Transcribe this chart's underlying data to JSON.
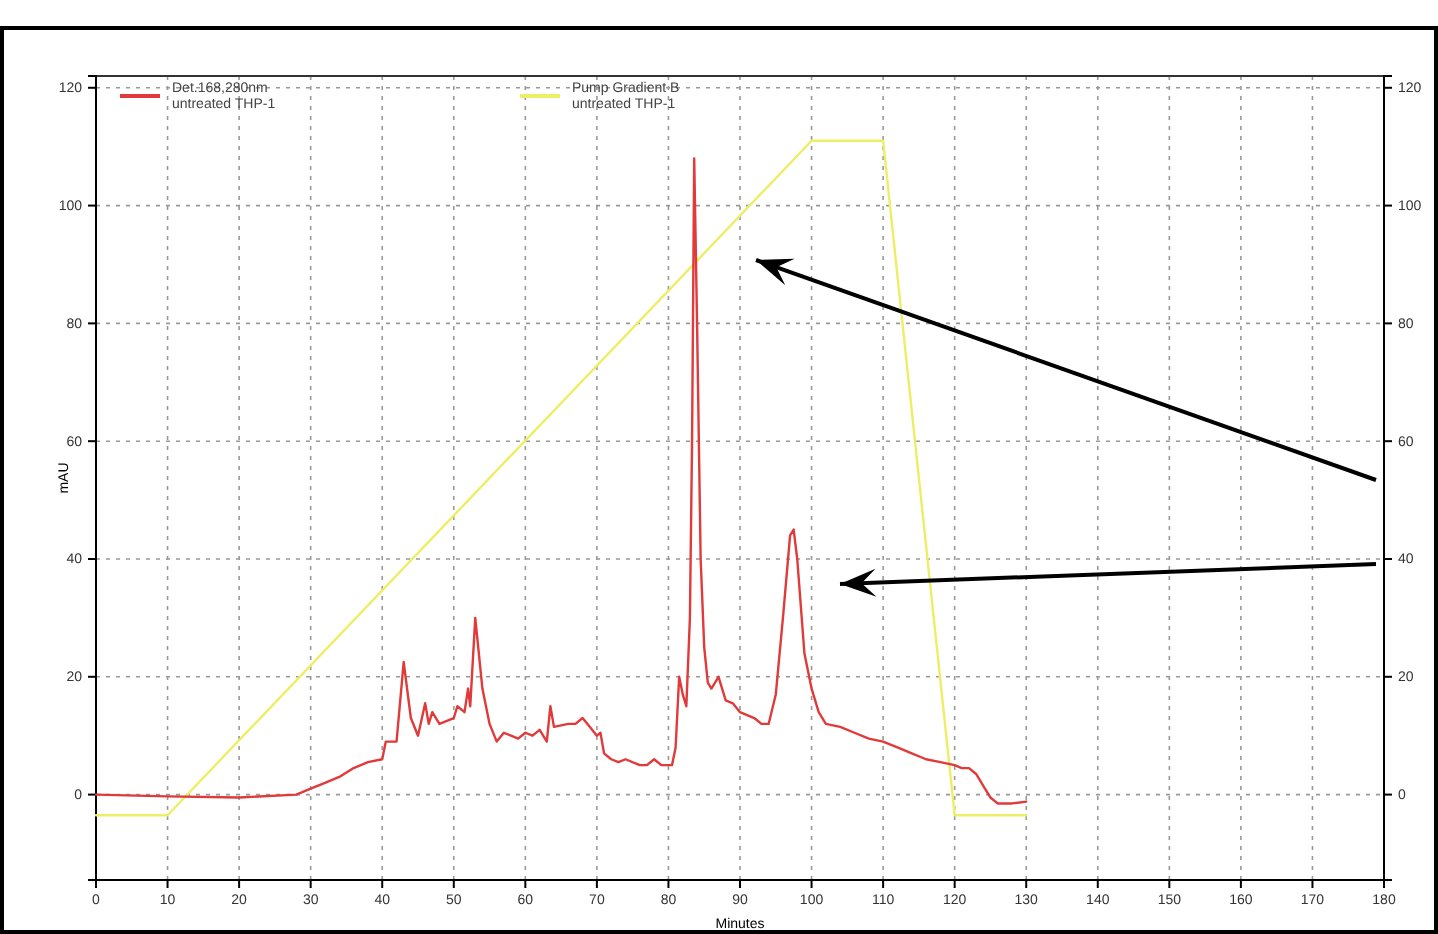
{
  "chart_data": {
    "type": "line",
    "xlabel": "Minutes",
    "ylabel": "mAU",
    "xlim": [
      0,
      180
    ],
    "xticks": [
      0,
      10,
      20,
      30,
      40,
      50,
      60,
      70,
      80,
      90,
      100,
      110,
      120,
      130,
      140,
      150,
      160,
      170,
      180
    ],
    "ylim": [
      -14.5,
      122
    ],
    "yticks": [
      0,
      20,
      40,
      60,
      80,
      100,
      120
    ],
    "y2lim": [
      -14.5,
      122
    ],
    "y2ticks": [
      0,
      20,
      40,
      60,
      80,
      100,
      120
    ],
    "grid": true,
    "legend": "top left",
    "line_style": "solid",
    "marker": "none",
    "series": [
      {
        "name": "Det.168,280nm\nuntreated THP-1",
        "color": "#e03a3a",
        "x": [
          0,
          10,
          20,
          28,
          30,
          32,
          34,
          36,
          38,
          40,
          40.5,
          42,
          43,
          44,
          45,
          46,
          46.5,
          47,
          48,
          50,
          50.5,
          51.5,
          52,
          52.3,
          53,
          54,
          55,
          56,
          57,
          58,
          59,
          60,
          61,
          62,
          63,
          63.5,
          64,
          66,
          67,
          68,
          69,
          70,
          70.5,
          71,
          72,
          73,
          74,
          76,
          77,
          78,
          79,
          80.5,
          81,
          81.5,
          82,
          82.5,
          83,
          83.3,
          83.6,
          84,
          84.5,
          85,
          85.5,
          86,
          87,
          88,
          89,
          90,
          92,
          93,
          94,
          95,
          96,
          97,
          97.5,
          98,
          99,
          100,
          101,
          102,
          104,
          106,
          108,
          110,
          112,
          114,
          116,
          118,
          120,
          121,
          122,
          123,
          124,
          125,
          126,
          128,
          130
        ],
        "values": [
          0,
          -0.3,
          -0.5,
          0,
          1,
          2,
          3,
          4.5,
          5.5,
          6,
          9,
          9,
          22.5,
          13,
          10,
          15.5,
          12,
          14,
          12,
          13,
          15,
          14,
          18,
          15,
          30,
          18,
          12,
          9,
          10.5,
          10,
          9.5,
          10.5,
          10,
          11,
          9,
          15,
          11.5,
          12,
          12,
          13,
          11.5,
          10,
          10.5,
          7,
          6,
          5.5,
          6,
          5,
          5,
          6,
          5,
          5,
          8,
          20,
          17,
          15,
          30,
          60,
          108,
          80,
          40,
          25,
          19,
          18,
          20,
          16,
          15.5,
          14,
          13,
          12,
          12,
          17,
          30,
          44,
          45,
          40,
          24,
          18,
          14,
          12,
          11.5,
          10.5,
          9.5,
          9,
          8,
          7,
          6,
          5.5,
          5,
          4.5,
          4.5,
          3.5,
          1.5,
          -0.5,
          -1.5,
          -1.5,
          -1.2
        ]
      },
      {
        "name": "Pump Gradient B\nuntreated THP-1",
        "color": "#eeee66",
        "x": [
          0,
          10,
          100,
          110,
          120,
          130
        ],
        "values": [
          -3.5,
          -3.5,
          111,
          111,
          -3.5,
          -3.5
        ]
      }
    ]
  }
}
